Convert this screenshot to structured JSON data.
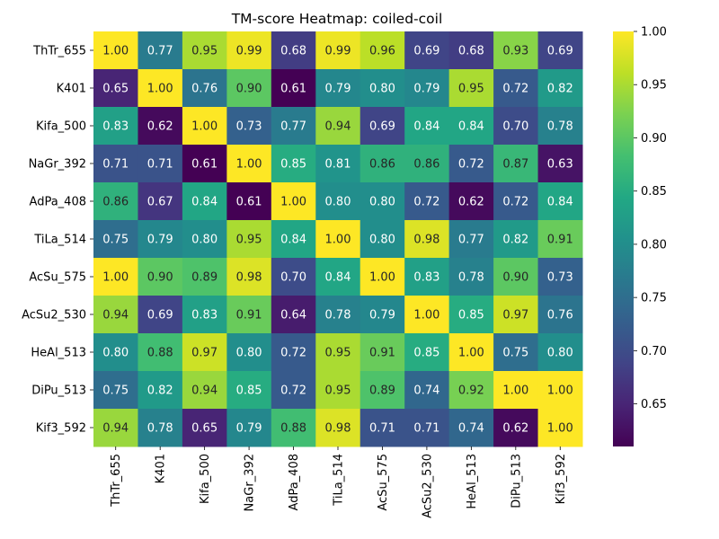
{
  "chart_data": {
    "type": "heatmap",
    "title": "TM-score Heatmap: coiled-coil",
    "x_labels": [
      "ThTr_655",
      "K401",
      "Kifa_500",
      "NaGr_392",
      "AdPa_408",
      "TiLa_514",
      "AcSu_575",
      "AcSu2_530",
      "HeAl_513",
      "DiPu_513",
      "Kif3_592"
    ],
    "y_labels": [
      "ThTr_655",
      "K401",
      "Kifa_500",
      "NaGr_392",
      "AdPa_408",
      "TiLa_514",
      "AcSu_575",
      "AcSu2_530",
      "HeAl_513",
      "DiPu_513",
      "Kif3_592"
    ],
    "values": [
      [
        1.0,
        0.77,
        0.95,
        0.99,
        0.68,
        0.99,
        0.96,
        0.69,
        0.68,
        0.93,
        0.69
      ],
      [
        0.65,
        1.0,
        0.76,
        0.9,
        0.61,
        0.79,
        0.8,
        0.79,
        0.95,
        0.72,
        0.82
      ],
      [
        0.83,
        0.62,
        1.0,
        0.73,
        0.77,
        0.94,
        0.69,
        0.84,
        0.84,
        0.7,
        0.78
      ],
      [
        0.71,
        0.71,
        0.61,
        1.0,
        0.85,
        0.81,
        0.86,
        0.86,
        0.72,
        0.87,
        0.63
      ],
      [
        0.86,
        0.67,
        0.84,
        0.61,
        1.0,
        0.8,
        0.8,
        0.72,
        0.62,
        0.72,
        0.84
      ],
      [
        0.75,
        0.79,
        0.8,
        0.95,
        0.84,
        1.0,
        0.8,
        0.98,
        0.77,
        0.82,
        0.91
      ],
      [
        1.0,
        0.9,
        0.89,
        0.98,
        0.7,
        0.84,
        1.0,
        0.83,
        0.78,
        0.9,
        0.73
      ],
      [
        0.94,
        0.69,
        0.83,
        0.91,
        0.64,
        0.78,
        0.79,
        1.0,
        0.85,
        0.97,
        0.76
      ],
      [
        0.8,
        0.88,
        0.97,
        0.8,
        0.72,
        0.95,
        0.91,
        0.85,
        1.0,
        0.75,
        0.8
      ],
      [
        0.75,
        0.82,
        0.94,
        0.85,
        0.72,
        0.95,
        0.89,
        0.74,
        0.92,
        1.0,
        1.0
      ],
      [
        0.94,
        0.78,
        0.65,
        0.79,
        0.88,
        0.98,
        0.71,
        0.71,
        0.74,
        0.62,
        1.0
      ]
    ],
    "colormap": "viridis",
    "vmin": 0.61,
    "vmax": 1.0,
    "colorbar_ticks": [
      0.65,
      0.7,
      0.75,
      0.8,
      0.85,
      0.9,
      0.95,
      1.0
    ],
    "annotate_format": "2 decimals",
    "grid": false,
    "legend": "colorbar right"
  }
}
